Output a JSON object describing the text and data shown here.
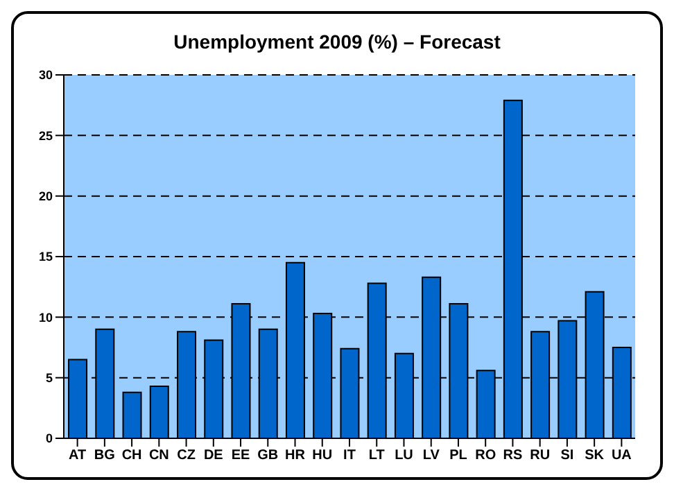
{
  "chart_data": {
    "type": "bar",
    "title": "Unemployment 2009 (%) – Forecast",
    "categories": [
      "AT",
      "BG",
      "CH",
      "CN",
      "CZ",
      "DE",
      "EE",
      "GB",
      "HR",
      "HU",
      "IT",
      "LT",
      "LU",
      "LV",
      "PL",
      "RO",
      "RS",
      "RU",
      "SI",
      "SK",
      "UA"
    ],
    "values": [
      6.5,
      9.0,
      3.8,
      4.3,
      8.8,
      8.1,
      11.1,
      9.0,
      14.5,
      10.3,
      7.4,
      12.8,
      7.0,
      13.3,
      11.1,
      5.6,
      27.9,
      8.8,
      9.7,
      12.1,
      7.5
    ],
    "color": "#0066cc",
    "ylim": [
      0,
      30
    ],
    "yticks": [
      0,
      5,
      10,
      15,
      20,
      25,
      30
    ],
    "grid": "y",
    "legend": false
  }
}
